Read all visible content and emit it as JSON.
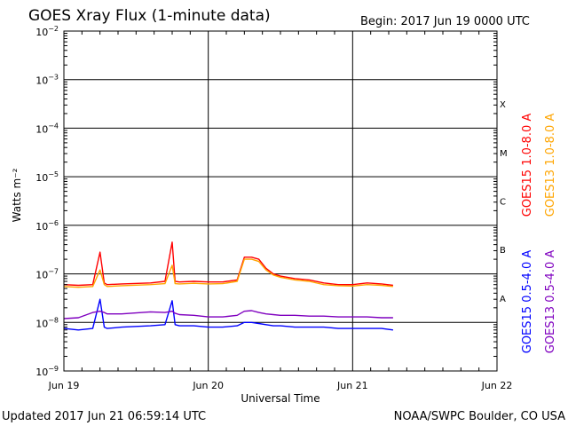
{
  "header": {
    "title": "GOES Xray Flux (1-minute data)",
    "begin": "Begin:  2017 Jun 19 0000 UTC"
  },
  "footer": {
    "updated": "Updated 2017 Jun 21 06:59:14 UTC",
    "credit": "NOAA/SWPC Boulder, CO USA"
  },
  "colors": {
    "goes15_long": "#ff0000",
    "goes13_long": "#ffa500",
    "goes15_short": "#0000ff",
    "goes13_short": "#7f00bf",
    "grid": "#000000",
    "background": "#ffffff"
  },
  "chart_data": {
    "type": "line",
    "title": "GOES Xray Flux (1-minute data)",
    "xlabel": "Universal Time",
    "ylabel": "Watts m⁻²",
    "y_scale": "log",
    "ylim": [
      1e-09,
      0.01
    ],
    "x_unit": "days since 2017 Jun 19 00:00 UTC",
    "xlim": [
      0,
      3
    ],
    "x_ticks": [
      {
        "value": 0,
        "label": "Jun 19"
      },
      {
        "value": 1,
        "label": "Jun 20"
      },
      {
        "value": 2,
        "label": "Jun 21"
      },
      {
        "value": 3,
        "label": "Jun 22"
      }
    ],
    "y_ticks": [
      {
        "value": 0.01,
        "base": "10",
        "exp": "-2"
      },
      {
        "value": 0.001,
        "base": "10",
        "exp": "-3"
      },
      {
        "value": 0.0001,
        "base": "10",
        "exp": "-4"
      },
      {
        "value": 1e-05,
        "base": "10",
        "exp": "-5"
      },
      {
        "value": 1e-06,
        "base": "10",
        "exp": "-6"
      },
      {
        "value": 1e-07,
        "base": "10",
        "exp": "-7"
      },
      {
        "value": 1e-08,
        "base": "10",
        "exp": "-8"
      },
      {
        "value": 1e-09,
        "base": "10",
        "exp": "-9"
      }
    ],
    "flare_classes": [
      {
        "label": "X",
        "value": 0.0001
      },
      {
        "label": "M",
        "value": 1e-05
      },
      {
        "label": "C",
        "value": 1e-06
      },
      {
        "label": "B",
        "value": 1e-07
      },
      {
        "label": "A",
        "value": 1e-08
      }
    ],
    "grid": true,
    "legend_placement": "right side, rotated",
    "series": [
      {
        "name": "GOES15 1.0-8.0 A",
        "color_key": "goes15_long",
        "x": [
          0,
          0.1,
          0.2,
          0.25,
          0.28,
          0.3,
          0.4,
          0.6,
          0.7,
          0.75,
          0.77,
          0.8,
          0.9,
          1.0,
          1.1,
          1.2,
          1.25,
          1.3,
          1.35,
          1.4,
          1.45,
          1.5,
          1.6,
          1.7,
          1.8,
          1.9,
          2.0,
          2.1,
          2.2,
          2.28
        ],
        "y": [
          6e-08,
          5.8e-08,
          6e-08,
          2.8e-07,
          6.5e-08,
          6e-08,
          6.2e-08,
          6.5e-08,
          7e-08,
          4.5e-07,
          7e-08,
          6.8e-08,
          7e-08,
          6.8e-08,
          6.8e-08,
          7.5e-08,
          2.2e-07,
          2.2e-07,
          2e-07,
          1.3e-07,
          1e-07,
          9e-08,
          8e-08,
          7.5e-08,
          6.5e-08,
          6e-08,
          6e-08,
          6.5e-08,
          6.2e-08,
          5.8e-08
        ]
      },
      {
        "name": "GOES13 1.0-8.0 A",
        "color_key": "goes13_long",
        "x": [
          0,
          0.1,
          0.2,
          0.25,
          0.28,
          0.3,
          0.4,
          0.6,
          0.7,
          0.75,
          0.77,
          0.8,
          0.9,
          1.0,
          1.1,
          1.2,
          1.25,
          1.3,
          1.35,
          1.4,
          1.45,
          1.5,
          1.6,
          1.7,
          1.8,
          1.9,
          2.0,
          2.1,
          2.2,
          2.28
        ],
        "y": [
          5.5e-08,
          5.3e-08,
          5.5e-08,
          1.2e-07,
          6e-08,
          5.5e-08,
          5.7e-08,
          6e-08,
          6.3e-08,
          1.5e-07,
          6.3e-08,
          6.2e-08,
          6.4e-08,
          6.2e-08,
          6.3e-08,
          7e-08,
          2e-07,
          2e-07,
          1.8e-07,
          1.2e-07,
          9.5e-08,
          8.5e-08,
          7.5e-08,
          7e-08,
          6e-08,
          5.7e-08,
          5.6e-08,
          6e-08,
          5.8e-08,
          5.5e-08
        ]
      },
      {
        "name": "GOES15 0.5-4.0 A",
        "color_key": "goes15_short",
        "x": [
          0,
          0.1,
          0.2,
          0.25,
          0.28,
          0.3,
          0.4,
          0.6,
          0.7,
          0.75,
          0.77,
          0.8,
          0.9,
          1.0,
          1.1,
          1.2,
          1.25,
          1.3,
          1.35,
          1.4,
          1.45,
          1.5,
          1.6,
          1.7,
          1.8,
          1.9,
          2.0,
          2.1,
          2.2,
          2.28
        ],
        "y": [
          7.5e-09,
          7e-09,
          7.5e-09,
          3e-08,
          8e-09,
          7.5e-09,
          8e-09,
          8.5e-09,
          9e-09,
          2.8e-08,
          9e-09,
          8.5e-09,
          8.5e-09,
          8e-09,
          8e-09,
          8.5e-09,
          1e-08,
          1e-08,
          9.5e-09,
          9e-09,
          8.5e-09,
          8.5e-09,
          8e-09,
          8e-09,
          8e-09,
          7.5e-09,
          7.5e-09,
          7.5e-09,
          7.5e-09,
          7e-09
        ]
      },
      {
        "name": "GOES13 0.5-4.0 A",
        "color_key": "goes13_short",
        "x": [
          0,
          0.1,
          0.2,
          0.25,
          0.28,
          0.3,
          0.4,
          0.6,
          0.7,
          0.75,
          0.77,
          0.8,
          0.9,
          1.0,
          1.1,
          1.2,
          1.25,
          1.3,
          1.35,
          1.4,
          1.45,
          1.5,
          1.6,
          1.7,
          1.8,
          1.9,
          2.0,
          2.1,
          2.2,
          2.28
        ],
        "y": [
          1.2e-08,
          1.25e-08,
          1.6e-08,
          1.7e-08,
          1.6e-08,
          1.5e-08,
          1.5e-08,
          1.65e-08,
          1.6e-08,
          1.7e-08,
          1.55e-08,
          1.45e-08,
          1.4e-08,
          1.3e-08,
          1.3e-08,
          1.4e-08,
          1.7e-08,
          1.75e-08,
          1.6e-08,
          1.5e-08,
          1.45e-08,
          1.4e-08,
          1.4e-08,
          1.35e-08,
          1.35e-08,
          1.3e-08,
          1.3e-08,
          1.3e-08,
          1.25e-08,
          1.25e-08
        ]
      }
    ]
  }
}
